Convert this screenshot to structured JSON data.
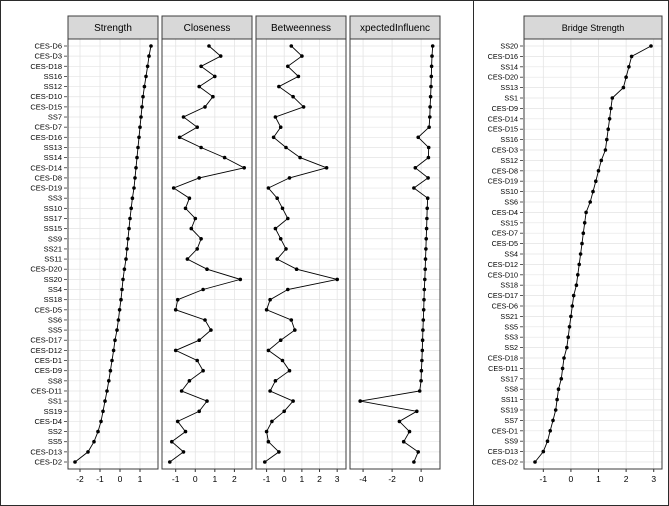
{
  "colors": {
    "header_fill": "#d8d8d8",
    "panel_border": "#3c3c3c",
    "gridline": "#e4e4e4",
    "series": "#000000",
    "outer_border": "#2b2b2b"
  },
  "chart_data": [
    {
      "type": "line",
      "id": "centrality-facets",
      "description": "Faceted centrality z-score plot; rows are network nodes, x is standardized centrality value, points connected top-to-bottom.",
      "row_labels": [
        "CES-D6",
        "CES-D3",
        "CES-D18",
        "SS16",
        "SS12",
        "CES-D10",
        "CES-D15",
        "SS7",
        "CES-D7",
        "CES-D16",
        "SS13",
        "SS14",
        "CES-D14",
        "CES-D8",
        "CES-D19",
        "SS3",
        "SS10",
        "SS17",
        "SS15",
        "SS9",
        "SS21",
        "SS11",
        "CES-D20",
        "SS20",
        "SS4",
        "SS18",
        "CES-D5",
        "SS6",
        "SS5",
        "CES-D17",
        "CES-D12",
        "CES-D1",
        "CES-D9",
        "SS8",
        "CES-D11",
        "SS1",
        "SS19",
        "CES-D4",
        "SS2",
        "SS5",
        "CES-D13",
        "CES-D2"
      ],
      "panels": [
        {
          "title": "Strength",
          "xticks": [
            -2,
            -1,
            0,
            1
          ],
          "xlim": [
            -2.6,
            1.9
          ],
          "values": [
            1.55,
            1.45,
            1.38,
            1.3,
            1.22,
            1.15,
            1.1,
            1.05,
            1.0,
            0.95,
            0.9,
            0.85,
            0.8,
            0.75,
            0.7,
            0.62,
            0.56,
            0.5,
            0.45,
            0.4,
            0.35,
            0.3,
            0.22,
            0.15,
            0.1,
            0.05,
            -0.02,
            -0.08,
            -0.15,
            -0.25,
            -0.32,
            -0.4,
            -0.48,
            -0.56,
            -0.65,
            -0.75,
            -0.85,
            -0.95,
            -1.1,
            -1.3,
            -1.6,
            -2.25
          ]
        },
        {
          "title": "Closeness",
          "xticks": [
            -1,
            0,
            1,
            2
          ],
          "xlim": [
            -1.7,
            2.9
          ],
          "values": [
            0.7,
            1.3,
            0.3,
            1.0,
            0.2,
            0.9,
            0.5,
            -0.6,
            0.1,
            -0.8,
            0.3,
            1.5,
            2.5,
            0.2,
            -1.1,
            -0.3,
            -0.5,
            0.0,
            -0.2,
            0.3,
            0.1,
            -0.4,
            0.6,
            2.3,
            0.4,
            -0.9,
            -1.0,
            0.5,
            0.8,
            0.2,
            -1.0,
            0.1,
            0.4,
            -0.3,
            -0.7,
            0.6,
            0.2,
            -0.9,
            -0.5,
            -1.2,
            -0.6,
            -1.3
          ]
        },
        {
          "title": "Betweenness",
          "xticks": [
            -1,
            0,
            1,
            2,
            3
          ],
          "xlim": [
            -1.6,
            3.5
          ],
          "values": [
            0.4,
            1.0,
            0.2,
            0.8,
            -0.3,
            0.5,
            1.1,
            -0.5,
            -0.2,
            -0.6,
            0.1,
            0.9,
            2.4,
            0.3,
            -0.9,
            -0.4,
            -0.1,
            0.2,
            -0.5,
            -0.2,
            0.1,
            -0.4,
            0.7,
            3.0,
            0.2,
            -0.8,
            -1.0,
            0.4,
            0.6,
            -0.2,
            -0.9,
            -0.1,
            0.3,
            -0.5,
            -0.8,
            0.5,
            0.0,
            -0.7,
            -1.0,
            -0.9,
            -0.3,
            -1.1
          ]
        },
        {
          "title": "xpectedInfluenc",
          "xticks": [
            -4,
            -2,
            0
          ],
          "xlim": [
            -4.9,
            1.3
          ],
          "values": [
            0.8,
            0.75,
            0.72,
            0.7,
            0.68,
            0.65,
            0.62,
            0.6,
            0.55,
            -0.2,
            0.52,
            0.5,
            -0.4,
            0.48,
            -0.5,
            0.45,
            0.42,
            0.4,
            0.38,
            0.35,
            0.33,
            0.3,
            0.28,
            0.25,
            0.22,
            0.2,
            0.18,
            0.15,
            0.12,
            0.1,
            0.08,
            0.05,
            0.02,
            0.0,
            -0.1,
            -4.2,
            -0.3,
            -1.5,
            -0.8,
            -1.2,
            -0.2,
            -0.5
          ]
        }
      ]
    },
    {
      "type": "line",
      "id": "bridge-strength",
      "title": "Bridge Strength",
      "description": "Bridge strength z-scores sorted descending; rows are network nodes.",
      "row_labels": [
        "SS20",
        "CES-D16",
        "SS14",
        "CES-D20",
        "SS13",
        "SS1",
        "CES-D9",
        "CES-D14",
        "CES-D15",
        "SS16",
        "CES-D3",
        "SS12",
        "CES-D8",
        "CES-D19",
        "SS10",
        "SS6",
        "CES-D4",
        "SS15",
        "CES-D7",
        "CES-D5",
        "SS4",
        "CES-D12",
        "CES-D10",
        "SS18",
        "CES-D17",
        "CES-D6",
        "SS21",
        "SS5",
        "SS3",
        "SS2",
        "CES-D18",
        "CES-D11",
        "SS17",
        "SS8",
        "SS11",
        "SS19",
        "SS7",
        "CES-D1",
        "SS9",
        "CES-D13",
        "CES-D2"
      ],
      "xticks": [
        -1,
        0,
        1,
        2,
        3
      ],
      "xlim": [
        -1.7,
        3.3
      ],
      "values": [
        2.9,
        2.2,
        2.1,
        2.0,
        1.9,
        1.5,
        1.45,
        1.4,
        1.35,
        1.3,
        1.25,
        1.1,
        1.0,
        0.9,
        0.8,
        0.7,
        0.55,
        0.5,
        0.45,
        0.4,
        0.35,
        0.3,
        0.25,
        0.2,
        0.1,
        0.05,
        0.0,
        -0.05,
        -0.1,
        -0.15,
        -0.25,
        -0.3,
        -0.35,
        -0.45,
        -0.5,
        -0.55,
        -0.65,
        -0.75,
        -0.85,
        -1.0,
        -1.3
      ]
    }
  ]
}
